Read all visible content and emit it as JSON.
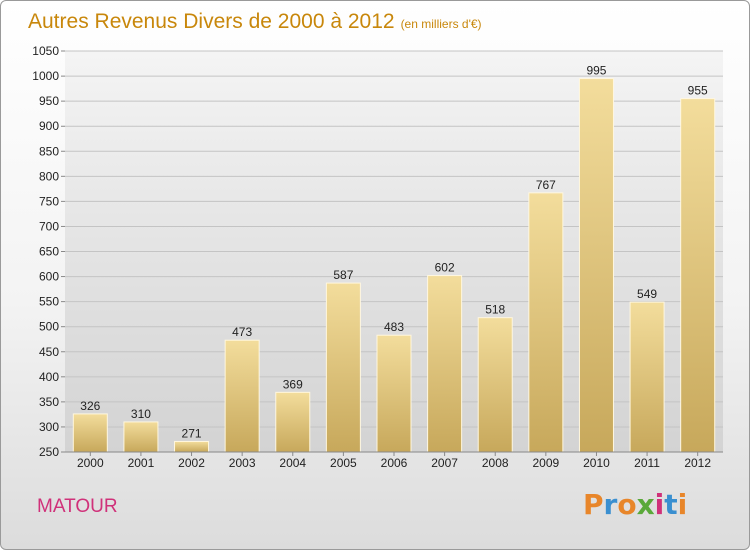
{
  "title": "Autres Revenus Divers de 2000 à 2012",
  "subtitle": "(en milliers d'€)",
  "town": "MATOUR",
  "logo": {
    "text": "Proxiti",
    "colors": [
      "#e8862a",
      "#3a8fd0",
      "#e8862a",
      "#5aa93a",
      "#d0317a",
      "#3a8fd0",
      "#e8862a"
    ]
  },
  "colors": {
    "title": "#c8870b",
    "town": "#d0317a",
    "bar_light": "#f2dc9a",
    "bar_dark": "#c8aa5e"
  },
  "chart_data": {
    "type": "bar",
    "categories": [
      "2000",
      "2001",
      "2002",
      "2003",
      "2004",
      "2005",
      "2006",
      "2007",
      "2008",
      "2009",
      "2010",
      "2011",
      "2012"
    ],
    "values": [
      326,
      310,
      271,
      473,
      369,
      587,
      483,
      602,
      518,
      767,
      995,
      549,
      955
    ],
    "ylim": [
      250,
      1050
    ],
    "yticks": [
      250,
      300,
      350,
      400,
      450,
      500,
      550,
      600,
      650,
      700,
      750,
      800,
      850,
      900,
      950,
      1000,
      1050
    ],
    "grid": true
  }
}
